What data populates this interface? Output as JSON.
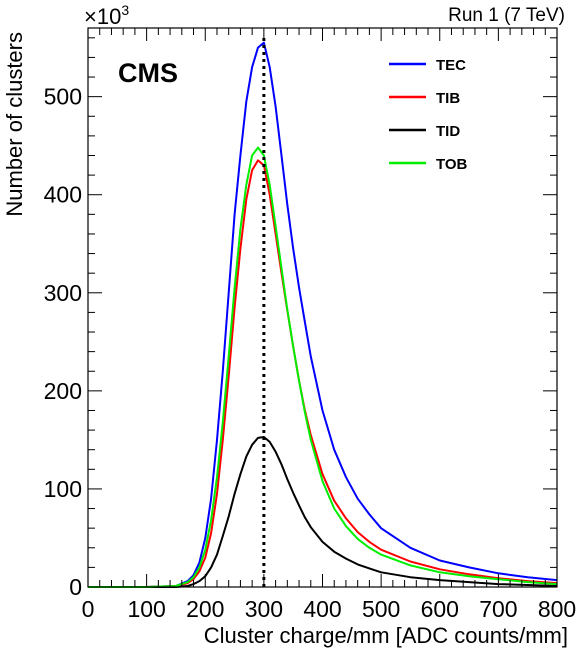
{
  "chart_data": {
    "type": "line",
    "xlabel": "Cluster charge/mm [ADC counts/mm]",
    "ylabel": "Number of clusters",
    "y_multiplier_label": "×10",
    "y_multiplier_exponent": "3",
    "experiment_label": "CMS",
    "run_label": "Run 1 (7 TeV)",
    "xlim": [
      0,
      800
    ],
    "ylim": [
      0,
      570
    ],
    "x_ticks": [
      0,
      100,
      200,
      300,
      400,
      500,
      600,
      700,
      800
    ],
    "y_ticks": [
      0,
      100,
      200,
      300,
      400,
      500
    ],
    "x_tick_labels": [
      "0",
      "100",
      "200",
      "300",
      "400",
      "500",
      "600",
      "700",
      "800"
    ],
    "y_tick_labels": [
      "0",
      "100",
      "200",
      "300",
      "400",
      "500"
    ],
    "grid": false,
    "legend_position": "top-right",
    "reference_line": {
      "x": 300,
      "style": "dotted"
    },
    "series": [
      {
        "name": "TEC",
        "color": "#0000ff",
        "x": [
          0,
          100,
          150,
          170,
          180,
          190,
          200,
          210,
          220,
          230,
          240,
          250,
          260,
          270,
          280,
          290,
          300,
          310,
          320,
          330,
          340,
          350,
          360,
          370,
          380,
          400,
          420,
          440,
          460,
          480,
          500,
          550,
          600,
          650,
          700,
          750,
          800
        ],
        "y": [
          0,
          0,
          1,
          6,
          12,
          25,
          50,
          90,
          150,
          220,
          300,
          380,
          440,
          495,
          530,
          550,
          555,
          530,
          490,
          440,
          390,
          345,
          305,
          270,
          235,
          180,
          140,
          112,
          90,
          74,
          60,
          40,
          27,
          20,
          14,
          10,
          7
        ]
      },
      {
        "name": "TIB",
        "color": "#ff0000",
        "x": [
          0,
          100,
          150,
          170,
          180,
          190,
          200,
          210,
          220,
          230,
          240,
          250,
          260,
          270,
          280,
          290,
          300,
          310,
          320,
          330,
          340,
          350,
          360,
          370,
          380,
          400,
          420,
          440,
          460,
          480,
          500,
          550,
          600,
          650,
          700,
          750,
          800
        ],
        "y": [
          0,
          0,
          1,
          4,
          8,
          16,
          30,
          55,
          95,
          150,
          215,
          285,
          345,
          395,
          425,
          435,
          430,
          400,
          360,
          320,
          282,
          245,
          210,
          180,
          155,
          115,
          88,
          70,
          56,
          46,
          38,
          26,
          18,
          13,
          9,
          6,
          4
        ]
      },
      {
        "name": "TID",
        "color": "#000000",
        "x": [
          0,
          100,
          150,
          170,
          180,
          190,
          200,
          210,
          220,
          230,
          240,
          250,
          260,
          270,
          280,
          290,
          300,
          310,
          320,
          330,
          340,
          350,
          360,
          370,
          380,
          400,
          420,
          440,
          460,
          480,
          500,
          550,
          600,
          650,
          700,
          750,
          800
        ],
        "y": [
          0,
          0,
          0,
          1,
          3,
          6,
          11,
          20,
          33,
          52,
          72,
          95,
          115,
          133,
          145,
          152,
          153,
          148,
          138,
          125,
          110,
          96,
          83,
          71,
          61,
          46,
          36,
          29,
          23,
          19,
          15,
          10,
          7,
          5,
          3,
          2,
          1
        ]
      },
      {
        "name": "TOB",
        "color": "#00ee00",
        "x": [
          0,
          100,
          150,
          170,
          180,
          190,
          200,
          210,
          220,
          230,
          240,
          250,
          260,
          270,
          280,
          290,
          300,
          310,
          320,
          330,
          340,
          350,
          360,
          370,
          380,
          400,
          420,
          440,
          460,
          480,
          500,
          550,
          600,
          650,
          700,
          750,
          800
        ],
        "y": [
          0,
          0,
          1,
          5,
          10,
          20,
          38,
          68,
          112,
          168,
          235,
          305,
          365,
          410,
          440,
          448,
          440,
          410,
          368,
          325,
          283,
          245,
          210,
          178,
          150,
          108,
          80,
          62,
          49,
          40,
          33,
          22,
          15,
          11,
          8,
          5,
          3
        ]
      }
    ]
  }
}
